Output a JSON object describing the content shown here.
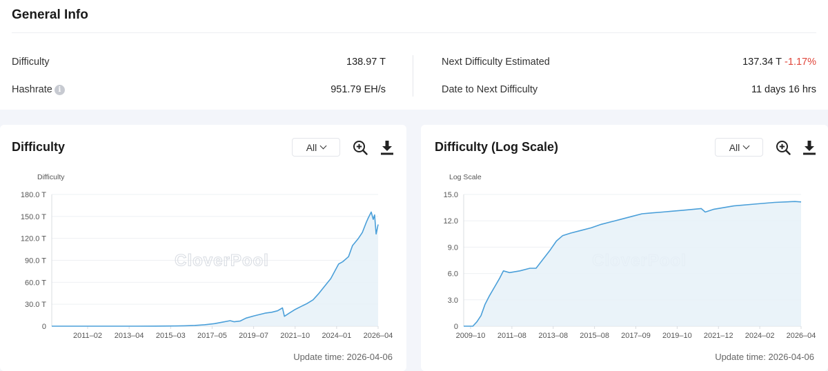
{
  "general": {
    "title": "General Info",
    "difficulty_label": "Difficulty",
    "difficulty_value": "138.97 T",
    "hashrate_label": "Hashrate",
    "hashrate_value": "951.79 EH/s",
    "next_label": "Next Difficulty Estimated",
    "next_value": "137.34 T",
    "next_change": "-1.17%",
    "date_label": "Date to Next Difficulty",
    "date_value": "11 days 16 hrs",
    "info_icon_glyph": "i"
  },
  "watermark": "CloverPool",
  "chart_data": [
    {
      "type": "area",
      "title": "Difficulty",
      "range_label": "All",
      "ylabel": "Difficulty",
      "ylim": [
        0,
        180
      ],
      "y_ticks": [
        "0",
        "30.0 T",
        "60.0 T",
        "90.0 T",
        "120.0 T",
        "150.0 T",
        "180.0 T"
      ],
      "x_ticks": [
        "2011–02",
        "2013–04",
        "2015–03",
        "2017–05",
        "2019–07",
        "2021–10",
        "2024–01",
        "2026–04"
      ],
      "xlim": [
        2009.75,
        2026.3
      ],
      "x": [
        2009.75,
        2010.5,
        2011.2,
        2012.0,
        2013.0,
        2014.0,
        2015.0,
        2016.0,
        2016.5,
        2017.0,
        2017.5,
        2018.0,
        2018.4,
        2018.8,
        2019.0,
        2019.3,
        2019.6,
        2020.0,
        2020.3,
        2020.6,
        2020.9,
        2021.2,
        2021.45,
        2021.55,
        2021.8,
        2022.1,
        2022.4,
        2022.7,
        2023.0,
        2023.3,
        2023.6,
        2023.9,
        2024.1,
        2024.3,
        2024.5,
        2024.8,
        2025.0,
        2025.3,
        2025.5,
        2025.7,
        2025.8,
        2025.95,
        2026.05,
        2026.12,
        2026.2,
        2026.3
      ],
      "values": [
        0,
        0,
        0,
        0,
        0,
        0,
        0.1,
        0.3,
        0.6,
        1.0,
        2.0,
        3.5,
        5.5,
        7.5,
        6.0,
        7.0,
        11.0,
        14.0,
        16.0,
        18.0,
        19.0,
        21.0,
        25.0,
        13.5,
        18.0,
        23.0,
        27.0,
        31.0,
        36.0,
        45.0,
        55.0,
        65.0,
        75.0,
        85.0,
        88.0,
        95.0,
        110.0,
        120.0,
        128.0,
        142.0,
        148.0,
        156.0,
        146.0,
        152.0,
        126.0,
        138.97
      ],
      "update_time": "Update time: 2026-04-06"
    },
    {
      "type": "area",
      "title": "Difficulty (Log Scale)",
      "range_label": "All",
      "ylabel": "Log Scale",
      "ylim": [
        0,
        15
      ],
      "y_ticks": [
        "0",
        "3.0",
        "6.0",
        "9.0",
        "12.0",
        "15.0"
      ],
      "x_ticks": [
        "2009–10",
        "2011–08",
        "2013–08",
        "2015–08",
        "2017–09",
        "2019–10",
        "2021–12",
        "2024–02",
        "2026–04"
      ],
      "xlim": [
        2009.75,
        2026.3
      ],
      "x": [
        2009.75,
        2010.2,
        2010.4,
        2010.6,
        2010.8,
        2011.0,
        2011.3,
        2011.5,
        2011.7,
        2012.0,
        2012.5,
        2013.0,
        2013.3,
        2013.6,
        2014.0,
        2014.3,
        2014.6,
        2015.0,
        2015.5,
        2016.0,
        2016.5,
        2017.0,
        2017.5,
        2018.0,
        2018.5,
        2019.0,
        2019.5,
        2020.0,
        2020.5,
        2021.0,
        2021.4,
        2021.6,
        2022.0,
        2023.0,
        2024.0,
        2025.0,
        2026.0,
        2026.3
      ],
      "values": [
        0,
        0,
        0.5,
        1.2,
        2.5,
        3.4,
        4.6,
        5.4,
        6.3,
        6.1,
        6.3,
        6.6,
        6.6,
        7.5,
        8.7,
        9.7,
        10.3,
        10.6,
        10.9,
        11.2,
        11.6,
        11.9,
        12.2,
        12.5,
        12.8,
        12.9,
        13.0,
        13.1,
        13.2,
        13.3,
        13.4,
        13.0,
        13.3,
        13.7,
        13.9,
        14.1,
        14.2,
        14.15
      ],
      "update_time": "Update time: 2026-04-06"
    }
  ]
}
